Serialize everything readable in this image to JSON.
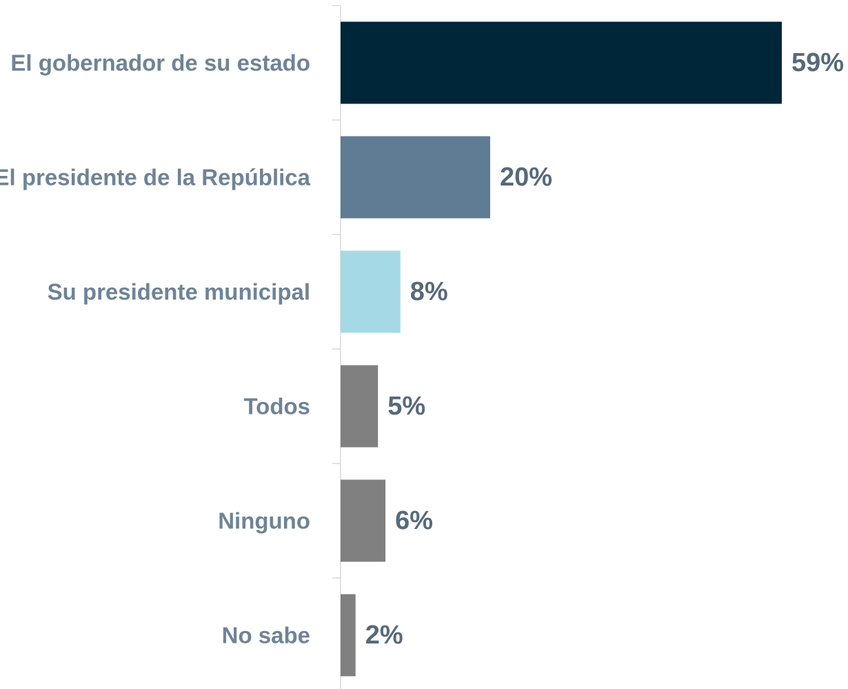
{
  "chart_data": {
    "type": "bar",
    "orientation": "horizontal",
    "categories": [
      "El gobernador de su estado",
      "El presidente de la República",
      "Su presidente municipal",
      "Todos ",
      "Ninguno",
      "No sabe"
    ],
    "values": [
      59,
      20,
      8,
      5,
      6,
      2
    ],
    "value_labels": [
      "59%",
      "20%",
      "8%",
      "5%",
      "6%",
      "2%"
    ],
    "bar_colors": [
      "#00263a",
      "#5f7c94",
      "#a6d9e6",
      "#808080",
      "#808080",
      "#808080"
    ],
    "title": "",
    "xlabel": "",
    "ylabel": "",
    "xlim": [
      0,
      59
    ],
    "grid": false,
    "legend": "none"
  },
  "colors": {
    "category_label": "#6f8396",
    "value_label": "#57697b",
    "axis_line": "#d9d9d9"
  }
}
